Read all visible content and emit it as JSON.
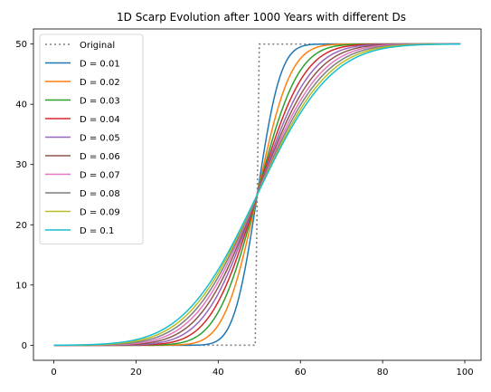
{
  "chart_data": {
    "type": "line",
    "title": "1D Scarp Evolution after 1000 Years with different Ds",
    "xlabel": "",
    "ylabel": "",
    "xlim": [
      -4.95,
      103.95
    ],
    "ylim": [
      -2.5,
      52.5
    ],
    "xticks": [
      0,
      20,
      40,
      60,
      80,
      100
    ],
    "yticks": [
      0,
      10,
      20,
      30,
      40,
      50
    ],
    "grid": false,
    "legend_position": "top-left",
    "original": {
      "name": "Original",
      "color": "#808080",
      "style": "dotted",
      "points": [
        [
          0,
          0
        ],
        [
          49,
          0
        ],
        [
          49.5,
          25
        ],
        [
          50,
          50
        ],
        [
          99,
          50
        ]
      ]
    },
    "x_range": [
      0,
      99
    ],
    "height": 50,
    "midpoint": 49.5,
    "series": [
      {
        "name": "D = 0.01",
        "D": 0.01,
        "color": "#1f77b4"
      },
      {
        "name": "D = 0.02",
        "D": 0.02,
        "color": "#ff7f0e"
      },
      {
        "name": "D = 0.03",
        "D": 0.03,
        "color": "#2ca02c"
      },
      {
        "name": "D = 0.04",
        "D": 0.04,
        "color": "#d62728"
      },
      {
        "name": "D = 0.05",
        "D": 0.05,
        "color": "#9467bd"
      },
      {
        "name": "D = 0.06",
        "D": 0.06,
        "color": "#8c564b"
      },
      {
        "name": "D = 0.07",
        "D": 0.07,
        "color": "#e377c2"
      },
      {
        "name": "D = 0.08",
        "D": 0.08,
        "color": "#7f7f7f"
      },
      {
        "name": "D = 0.09",
        "D": 0.09,
        "color": "#bcbd22"
      },
      {
        "name": "D = 0.1",
        "D": 0.1,
        "color": "#17becf"
      }
    ],
    "years": 1000
  }
}
